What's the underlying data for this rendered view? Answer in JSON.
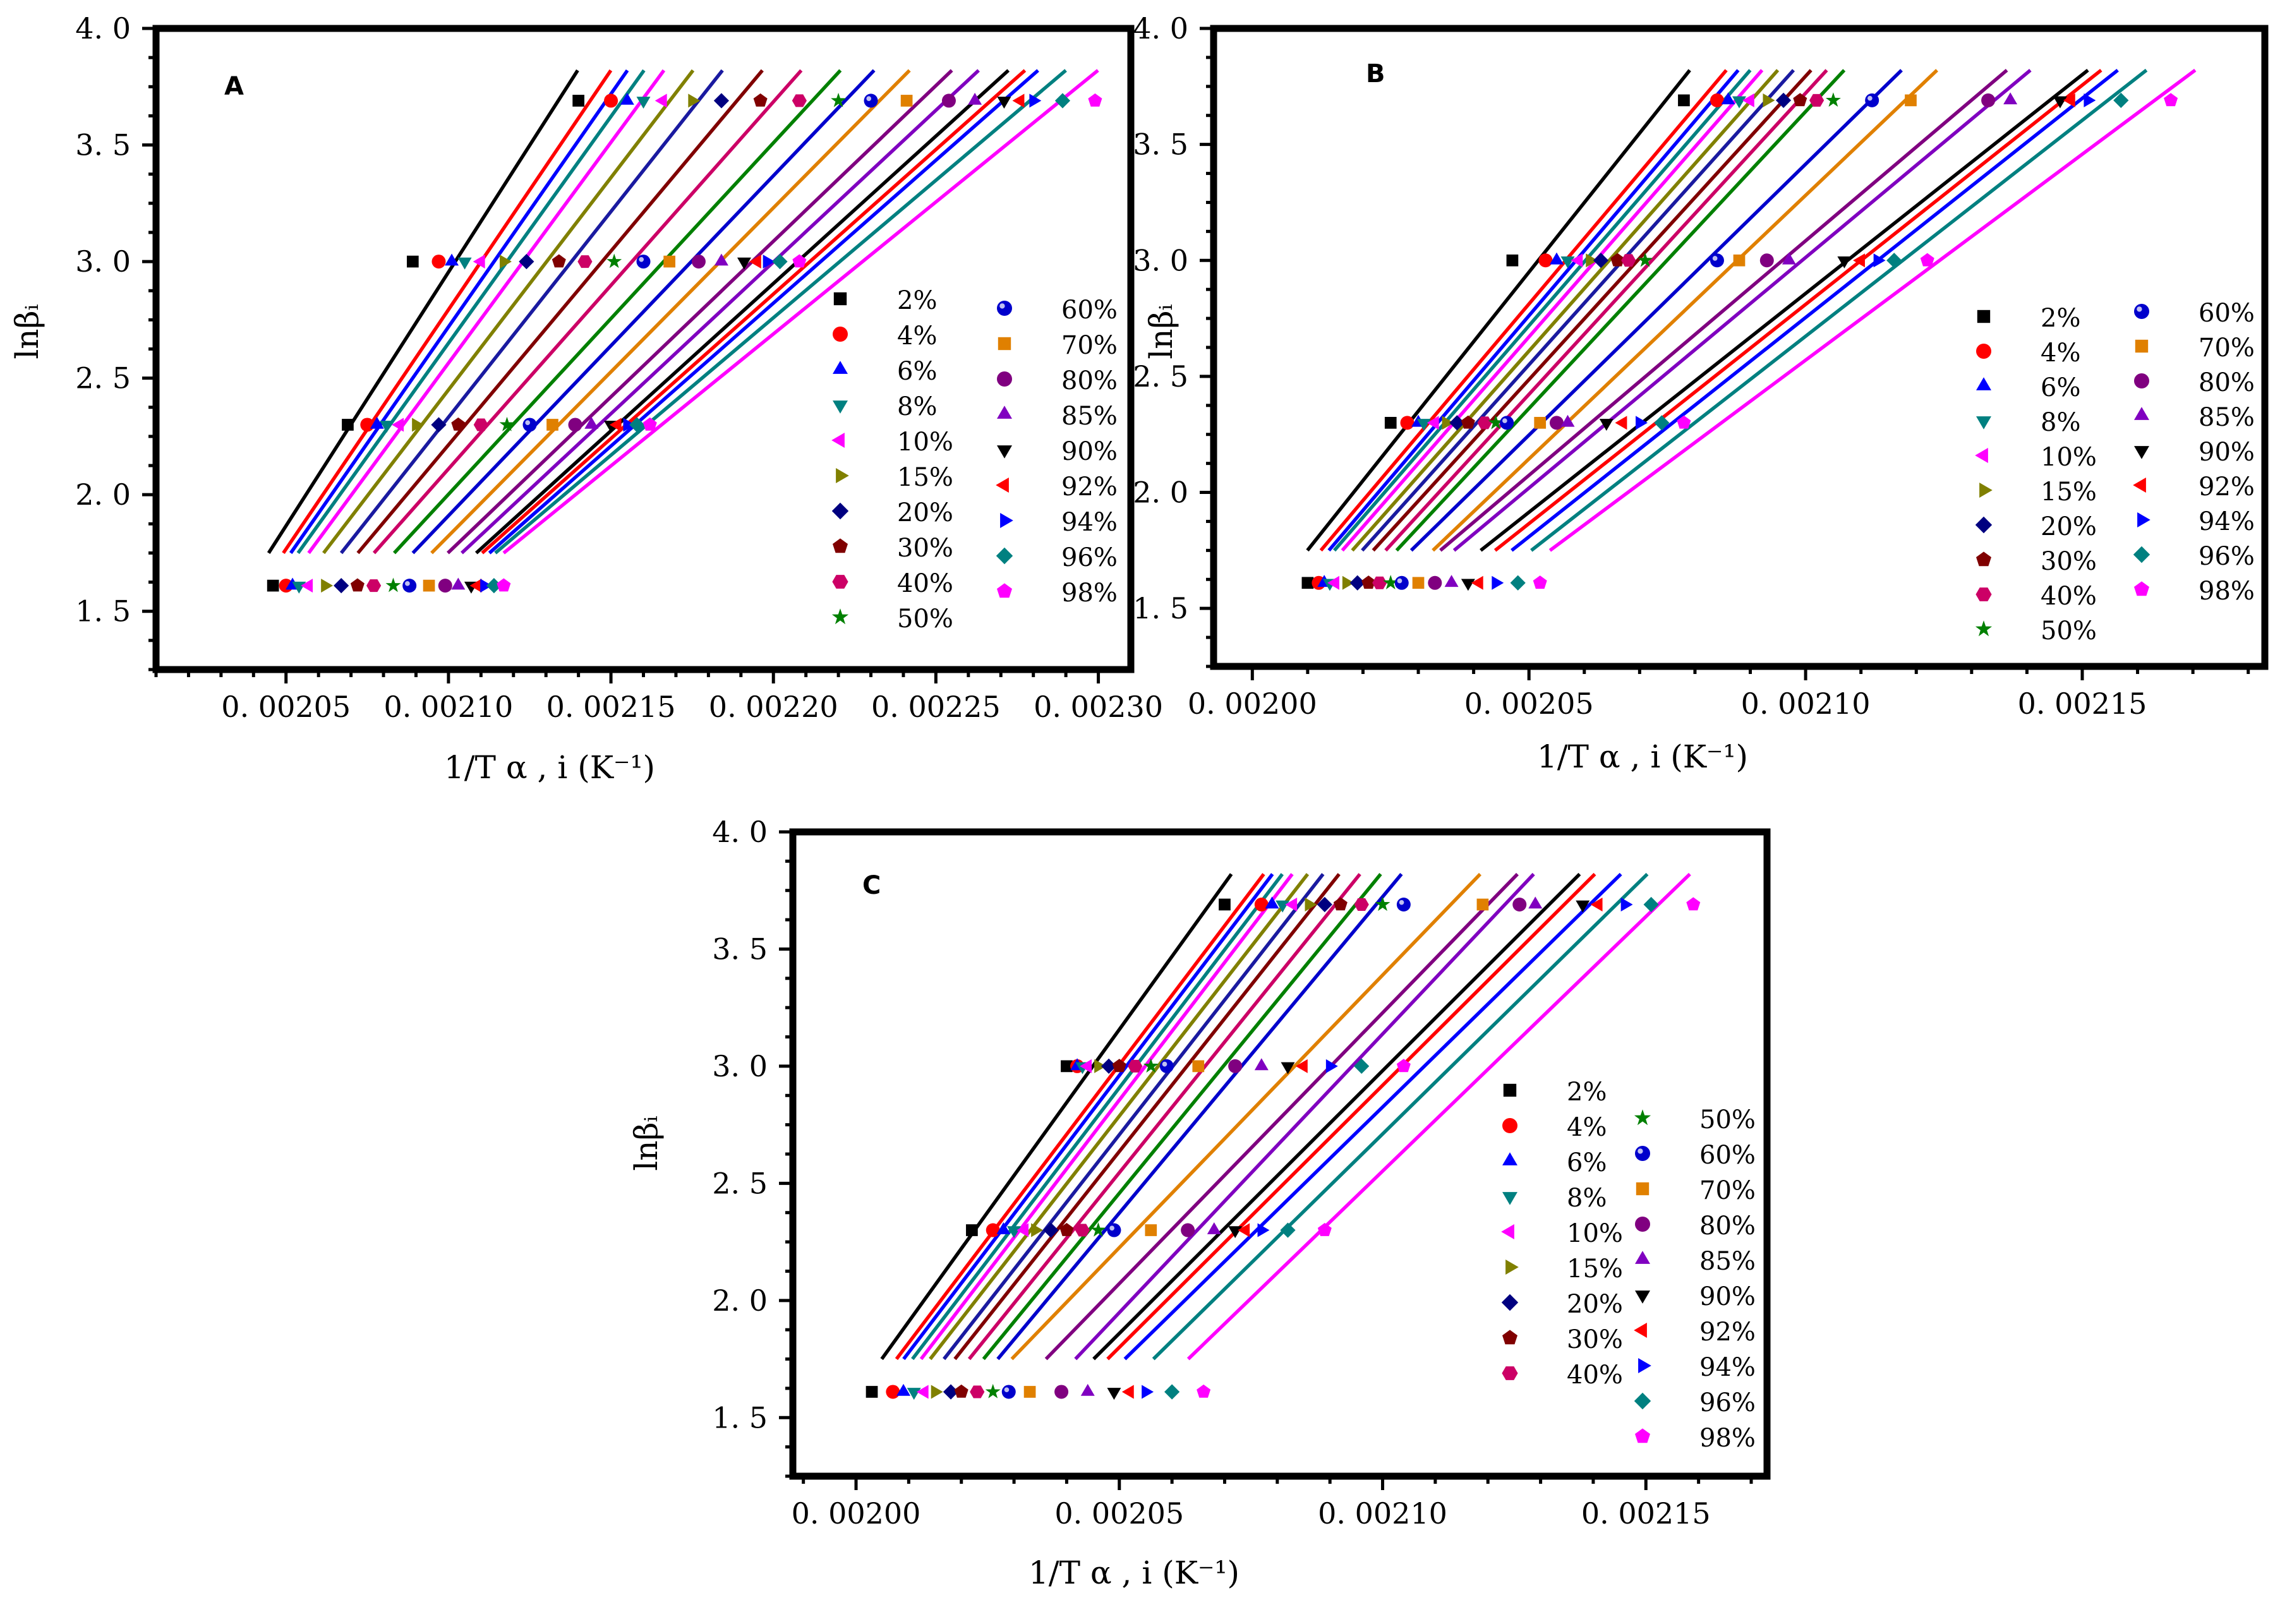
{
  "figure": {
    "panels": [
      "A",
      "B",
      "C"
    ],
    "xlabel": "1/T α , i",
    "xlabel_units": "(K⁻¹)",
    "ylabel": "lnβᵢ"
  },
  "series_styles": [
    {
      "name": "2%",
      "color": "#000000",
      "marker": "square"
    },
    {
      "name": "4%",
      "color": "#ff0000",
      "marker": "circle"
    },
    {
      "name": "6%",
      "color": "#0000ff",
      "marker": "triangle-up"
    },
    {
      "name": "8%",
      "color": "#008080",
      "marker": "triangle-down"
    },
    {
      "name": "10%",
      "color": "#ff00ff",
      "marker": "triangle-left"
    },
    {
      "name": "15%",
      "color": "#808000",
      "marker": "triangle-right"
    },
    {
      "name": "20%",
      "color": "#000080",
      "marker": "diamond"
    },
    {
      "name": "30%",
      "color": "#800000",
      "marker": "pentagon"
    },
    {
      "name": "40%",
      "color": "#cc0066",
      "marker": "hexagon"
    },
    {
      "name": "50%",
      "color": "#008000",
      "marker": "star"
    },
    {
      "name": "60%",
      "color": "#0000cc",
      "marker": "sphere"
    },
    {
      "name": "70%",
      "color": "#e08000",
      "marker": "square"
    },
    {
      "name": "80%",
      "color": "#800080",
      "marker": "circle"
    },
    {
      "name": "85%",
      "color": "#8000c0",
      "marker": "triangle-up"
    },
    {
      "name": "90%",
      "color": "#000000",
      "marker": "triangle-down"
    },
    {
      "name": "92%",
      "color": "#ff0000",
      "marker": "triangle-left"
    },
    {
      "name": "94%",
      "color": "#0000ff",
      "marker": "triangle-right"
    },
    {
      "name": "96%",
      "color": "#008080",
      "marker": "diamond"
    },
    {
      "name": "98%",
      "color": "#ff00ff",
      "marker": "pentagon"
    }
  ],
  "chart_data": [
    {
      "type": "scatter",
      "panel": "A",
      "title": "",
      "xlabel": "1/T α , i (K⁻¹)",
      "ylabel": "lnβᵢ",
      "xlim": [
        0.00201,
        0.00231
      ],
      "ylim": [
        1.25,
        4.0
      ],
      "xticks": [
        0.00205,
        0.0021,
        0.00215,
        0.0022,
        0.00225,
        0.0023
      ],
      "xtick_labels": [
        "0. 00205",
        "0. 00210",
        "0. 00215",
        "0. 00220",
        "0. 00225",
        "0. 00230"
      ],
      "yticks": [
        1.5,
        2.0,
        2.5,
        3.0,
        3.5,
        4.0
      ],
      "ytick_labels": [
        "1. 5",
        "2. 0",
        "2. 5",
        "3. 0",
        "3. 5",
        "4. 0"
      ],
      "y_levels": [
        1.61,
        2.3,
        3.0,
        3.69
      ],
      "legend_position": "right",
      "series": [
        {
          "name": "2%",
          "x": [
            0.002046,
            0.002069,
            0.002089,
            0.00214
          ]
        },
        {
          "name": "4%",
          "x": [
            0.00205,
            0.002075,
            0.002097,
            0.00215
          ]
        },
        {
          "name": "6%",
          "x": [
            0.002052,
            0.002078,
            0.002101,
            0.002155
          ]
        },
        {
          "name": "8%",
          "x": [
            0.002054,
            0.002081,
            0.002105,
            0.00216
          ]
        },
        {
          "name": "10%",
          "x": [
            0.002057,
            0.002085,
            0.00211,
            0.002166
          ]
        },
        {
          "name": "15%",
          "x": [
            0.002062,
            0.00209,
            0.002117,
            0.002175
          ]
        },
        {
          "name": "20%",
          "x": [
            0.002067,
            0.002097,
            0.002124,
            0.002184
          ]
        },
        {
          "name": "30%",
          "x": [
            0.002072,
            0.002103,
            0.002134,
            0.002196
          ]
        },
        {
          "name": "40%",
          "x": [
            0.002077,
            0.00211,
            0.002142,
            0.002208
          ]
        },
        {
          "name": "50%",
          "x": [
            0.002083,
            0.002118,
            0.002151,
            0.00222
          ]
        },
        {
          "name": "60%",
          "x": [
            0.002088,
            0.002125,
            0.00216,
            0.00223
          ]
        },
        {
          "name": "70%",
          "x": [
            0.002094,
            0.002132,
            0.002168,
            0.002241
          ]
        },
        {
          "name": "80%",
          "x": [
            0.002099,
            0.002139,
            0.002177,
            0.002254
          ]
        },
        {
          "name": "85%",
          "x": [
            0.002103,
            0.002144,
            0.002184,
            0.002262
          ]
        },
        {
          "name": "90%",
          "x": [
            0.002107,
            0.00215,
            0.002191,
            0.002271
          ]
        },
        {
          "name": "92%",
          "x": [
            0.002109,
            0.002152,
            0.002195,
            0.002276
          ]
        },
        {
          "name": "94%",
          "x": [
            0.002111,
            0.002155,
            0.002198,
            0.00228
          ]
        },
        {
          "name": "96%",
          "x": [
            0.002114,
            0.002158,
            0.002202,
            0.002289
          ]
        },
        {
          "name": "98%",
          "x": [
            0.002117,
            0.002162,
            0.002208,
            0.002299
          ]
        }
      ]
    },
    {
      "type": "scatter",
      "panel": "B",
      "title": "",
      "xlabel": "1/T α , i (K⁻¹)",
      "ylabel": "lnβᵢ",
      "xlim": [
        0.001993,
        0.002183
      ],
      "ylim": [
        1.25,
        4.0
      ],
      "xticks": [
        0.002,
        0.00205,
        0.0021,
        0.00215
      ],
      "xtick_labels": [
        "0. 00200",
        "0. 00205",
        "0. 00210",
        "0. 00215"
      ],
      "yticks": [
        1.5,
        2.0,
        2.5,
        3.0,
        3.5,
        4.0
      ],
      "ytick_labels": [
        "1. 5",
        "2. 0",
        "2. 5",
        "3. 0",
        "3. 5",
        "4. 0"
      ],
      "y_levels": [
        1.61,
        2.3,
        3.0,
        3.69
      ],
      "legend_position": "right",
      "series": [
        {
          "name": "2%",
          "x": [
            0.00201,
            0.002025,
            0.002047,
            0.002078
          ]
        },
        {
          "name": "4%",
          "x": [
            0.002012,
            0.002028,
            0.002053,
            0.002084
          ]
        },
        {
          "name": "6%",
          "x": [
            0.002013,
            0.00203,
            0.002055,
            0.002086
          ]
        },
        {
          "name": "8%",
          "x": [
            0.002014,
            0.002031,
            0.002057,
            0.002088
          ]
        },
        {
          "name": "10%",
          "x": [
            0.002015,
            0.002033,
            0.002059,
            0.00209
          ]
        },
        {
          "name": "15%",
          "x": [
            0.002017,
            0.002035,
            0.002061,
            0.002093
          ]
        },
        {
          "name": "20%",
          "x": [
            0.002019,
            0.002037,
            0.002063,
            0.002096
          ]
        },
        {
          "name": "30%",
          "x": [
            0.002021,
            0.002039,
            0.002066,
            0.002099
          ]
        },
        {
          "name": "40%",
          "x": [
            0.002023,
            0.002042,
            0.002068,
            0.002102
          ]
        },
        {
          "name": "50%",
          "x": [
            0.002025,
            0.002044,
            0.002071,
            0.002105
          ]
        },
        {
          "name": "60%",
          "x": [
            0.002027,
            0.002046,
            0.002084,
            0.002112
          ]
        },
        {
          "name": "70%",
          "x": [
            0.00203,
            0.002052,
            0.002088,
            0.002119
          ]
        },
        {
          "name": "80%",
          "x": [
            0.002033,
            0.002055,
            0.002093,
            0.002133
          ]
        },
        {
          "name": "85%",
          "x": [
            0.002036,
            0.002057,
            0.002097,
            0.002137
          ]
        },
        {
          "name": "90%",
          "x": [
            0.002039,
            0.002064,
            0.002107,
            0.002146
          ]
        },
        {
          "name": "92%",
          "x": [
            0.002041,
            0.002067,
            0.00211,
            0.002148
          ]
        },
        {
          "name": "94%",
          "x": [
            0.002044,
            0.00207,
            0.002113,
            0.002151
          ]
        },
        {
          "name": "96%",
          "x": [
            0.002048,
            0.002074,
            0.002116,
            0.002157
          ]
        },
        {
          "name": "98%",
          "x": [
            0.002052,
            0.002078,
            0.002122,
            0.002166
          ]
        }
      ]
    },
    {
      "type": "scatter",
      "panel": "C",
      "title": "",
      "xlabel": "1/T α , i (K⁻¹)",
      "ylabel": "lnβᵢ",
      "xlim": [
        0.001988,
        0.002173
      ],
      "ylim": [
        1.25,
        4.0
      ],
      "xticks": [
        0.002,
        0.00205,
        0.0021,
        0.00215
      ],
      "xtick_labels": [
        "0. 00200",
        "0. 00205",
        "0. 00210",
        "0. 00215"
      ],
      "yticks": [
        1.5,
        2.0,
        2.5,
        3.0,
        3.5,
        4.0
      ],
      "ytick_labels": [
        "1. 5",
        "2. 0",
        "2. 5",
        "3. 0",
        "3. 5",
        "4. 0"
      ],
      "y_levels": [
        1.61,
        2.3,
        3.0,
        3.69
      ],
      "legend_position": "right",
      "series": [
        {
          "name": "2%",
          "x": [
            0.002003,
            0.002022,
            0.00204,
            0.00207
          ]
        },
        {
          "name": "4%",
          "x": [
            0.002007,
            0.002026,
            0.002042,
            0.002077
          ]
        },
        {
          "name": "6%",
          "x": [
            0.002009,
            0.002028,
            0.002042,
            0.002079
          ]
        },
        {
          "name": "8%",
          "x": [
            0.002011,
            0.00203,
            0.002043,
            0.002081
          ]
        },
        {
          "name": "10%",
          "x": [
            0.002013,
            0.002032,
            0.002044,
            0.002083
          ]
        },
        {
          "name": "15%",
          "x": [
            0.002015,
            0.002034,
            0.002046,
            0.002086
          ]
        },
        {
          "name": "20%",
          "x": [
            0.002018,
            0.002037,
            0.002048,
            0.002089
          ]
        },
        {
          "name": "30%",
          "x": [
            0.00202,
            0.00204,
            0.00205,
            0.002092
          ]
        },
        {
          "name": "40%",
          "x": [
            0.002023,
            0.002043,
            0.002053,
            0.002096
          ]
        },
        {
          "name": "50%",
          "x": [
            0.002026,
            0.002046,
            0.002056,
            0.0021
          ]
        },
        {
          "name": "60%",
          "x": [
            0.002029,
            0.002049,
            0.002059,
            0.002104
          ]
        },
        {
          "name": "70%",
          "x": [
            0.002033,
            0.002056,
            0.002065,
            0.002119
          ]
        },
        {
          "name": "80%",
          "x": [
            0.002039,
            0.002063,
            0.002072,
            0.002126
          ]
        },
        {
          "name": "85%",
          "x": [
            0.002044,
            0.002068,
            0.002077,
            0.002129
          ]
        },
        {
          "name": "90%",
          "x": [
            0.002049,
            0.002072,
            0.002082,
            0.002138
          ]
        },
        {
          "name": "92%",
          "x": [
            0.002052,
            0.002074,
            0.002085,
            0.002141
          ]
        },
        {
          "name": "94%",
          "x": [
            0.002055,
            0.002077,
            0.00209,
            0.002146
          ]
        },
        {
          "name": "96%",
          "x": [
            0.00206,
            0.002082,
            0.002096,
            0.002151
          ]
        },
        {
          "name": "98%",
          "x": [
            0.002066,
            0.002089,
            0.002104,
            0.002159
          ]
        }
      ]
    }
  ]
}
